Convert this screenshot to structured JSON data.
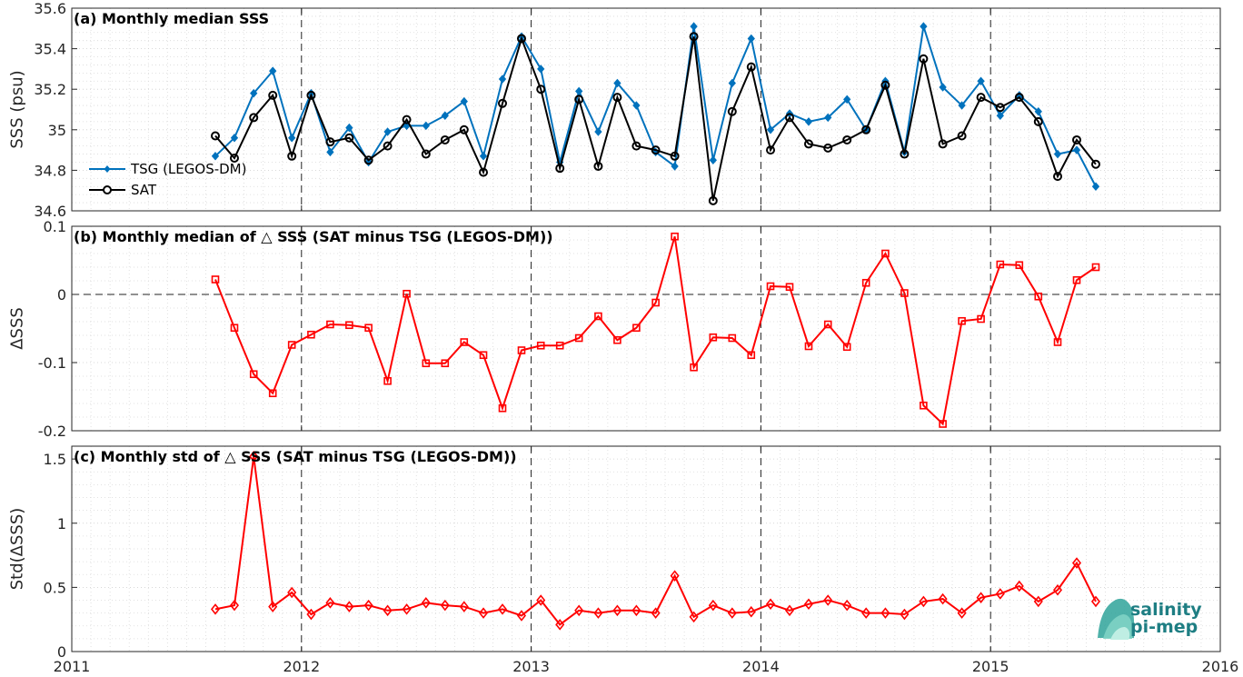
{
  "chart_data": [
    {
      "type": "line",
      "panel": "a",
      "title": "(a) Monthly median SSS",
      "ylabel": "SSS (psu)",
      "xlim": [
        2011,
        2016
      ],
      "ylim": [
        34.6,
        35.6
      ],
      "yticks": [
        "34.6",
        "34.8",
        "35",
        "35.2",
        "35.4",
        "35.6"
      ],
      "grid": true,
      "legend_placement": "left",
      "x": [
        2011.625,
        2011.708,
        2011.792,
        2011.875,
        2011.958,
        2012.042,
        2012.125,
        2012.208,
        2012.292,
        2012.375,
        2012.458,
        2012.542,
        2012.625,
        2012.708,
        2012.792,
        2012.875,
        2012.958,
        2013.042,
        2013.125,
        2013.208,
        2013.292,
        2013.375,
        2013.458,
        2013.542,
        2013.625,
        2013.708,
        2013.792,
        2013.875,
        2013.958,
        2014.042,
        2014.125,
        2014.208,
        2014.292,
        2014.375,
        2014.458,
        2014.542,
        2014.625,
        2014.708,
        2014.792,
        2014.875,
        2014.958,
        2015.042,
        2015.125,
        2015.208,
        2015.292,
        2015.375,
        2015.458
      ],
      "series": [
        {
          "name": "TSG (LEGOS-DM)",
          "color": "#0072bd",
          "marker": "diamond",
          "values": [
            34.87,
            34.96,
            35.18,
            35.29,
            34.96,
            35.18,
            34.89,
            35.01,
            34.84,
            34.99,
            35.02,
            35.02,
            35.07,
            35.14,
            34.87,
            35.25,
            35.46,
            35.3,
            34.84,
            35.19,
            34.99,
            35.23,
            35.12,
            34.89,
            34.82,
            35.51,
            34.85,
            35.23,
            35.45,
            35.0,
            35.08,
            35.04,
            35.06,
            35.15,
            35.0,
            35.24,
            34.89,
            35.51,
            35.21,
            35.12,
            35.24,
            35.07,
            35.17,
            35.09,
            34.88,
            34.9,
            34.72
          ]
        },
        {
          "name": "SAT",
          "color": "#000000",
          "marker": "circle",
          "values": [
            34.97,
            34.86,
            35.06,
            35.17,
            34.87,
            35.17,
            34.94,
            34.96,
            34.85,
            34.92,
            35.05,
            34.88,
            34.95,
            35.0,
            34.79,
            35.13,
            35.45,
            35.2,
            34.81,
            35.15,
            34.82,
            35.16,
            34.92,
            34.9,
            34.87,
            35.46,
            34.65,
            35.09,
            35.31,
            34.9,
            35.06,
            34.93,
            34.91,
            34.95,
            35.0,
            35.22,
            34.88,
            35.35,
            34.93,
            34.97,
            35.16,
            35.11,
            35.16,
            35.04,
            34.77,
            34.95,
            34.83
          ]
        }
      ]
    },
    {
      "type": "line",
      "panel": "b",
      "title": "(b) Monthly median of △ SSS (SAT minus TSG (LEGOS-DM))",
      "ylabel": "ΔSSS",
      "xlim": [
        2011,
        2016
      ],
      "ylim": [
        -0.2,
        0.1
      ],
      "yticks": [
        "-0.2",
        "-0.1",
        "0",
        "0.1"
      ],
      "grid": true,
      "zero_line": true,
      "x": [
        2011.625,
        2011.708,
        2011.792,
        2011.875,
        2011.958,
        2012.042,
        2012.125,
        2012.208,
        2012.292,
        2012.375,
        2012.458,
        2012.542,
        2012.625,
        2012.708,
        2012.792,
        2012.875,
        2012.958,
        2013.042,
        2013.125,
        2013.208,
        2013.292,
        2013.375,
        2013.458,
        2013.542,
        2013.625,
        2013.708,
        2013.792,
        2013.875,
        2013.958,
        2014.042,
        2014.125,
        2014.208,
        2014.292,
        2014.375,
        2014.458,
        2014.542,
        2014.625,
        2014.708,
        2014.792,
        2014.875,
        2014.958,
        2015.042,
        2015.125,
        2015.208,
        2015.292,
        2015.375,
        2015.458
      ],
      "series": [
        {
          "name": "",
          "color": "#ff0000",
          "marker": "square",
          "values": [
            0.022,
            -0.049,
            -0.117,
            -0.145,
            -0.074,
            -0.059,
            -0.044,
            -0.045,
            -0.049,
            -0.127,
            0.001,
            -0.101,
            -0.101,
            -0.07,
            -0.089,
            -0.167,
            -0.082,
            -0.075,
            -0.075,
            -0.064,
            -0.032,
            -0.067,
            -0.049,
            -0.012,
            0.085,
            -0.107,
            -0.063,
            -0.064,
            -0.089,
            0.012,
            0.011,
            -0.076,
            -0.044,
            -0.077,
            0.017,
            0.06,
            0.002,
            -0.163,
            -0.19,
            -0.039,
            -0.036,
            0.044,
            0.043,
            -0.003,
            -0.07,
            0.021,
            0.04
          ]
        }
      ]
    },
    {
      "type": "line",
      "panel": "c",
      "title": "(c) Monthly std of △ SSS (SAT minus TSG (LEGOS-DM))",
      "ylabel": "Std(ΔSSS)",
      "xlim": [
        2011,
        2016
      ],
      "ylim": [
        0,
        1.6
      ],
      "yticks": [
        "0",
        "0.5",
        "1",
        "1.5"
      ],
      "xticks": [
        "2011",
        "2012",
        "2013",
        "2014",
        "2015",
        "2016"
      ],
      "grid": true,
      "x": [
        2011.625,
        2011.708,
        2011.792,
        2011.875,
        2011.958,
        2012.042,
        2012.125,
        2012.208,
        2012.292,
        2012.375,
        2012.458,
        2012.542,
        2012.625,
        2012.708,
        2012.792,
        2012.875,
        2012.958,
        2013.042,
        2013.125,
        2013.208,
        2013.292,
        2013.375,
        2013.458,
        2013.542,
        2013.625,
        2013.708,
        2013.792,
        2013.875,
        2013.958,
        2014.042,
        2014.125,
        2014.208,
        2014.292,
        2014.375,
        2014.458,
        2014.542,
        2014.625,
        2014.708,
        2014.792,
        2014.875,
        2014.958,
        2015.042,
        2015.125,
        2015.208,
        2015.292,
        2015.375,
        2015.458
      ],
      "series": [
        {
          "name": "",
          "color": "#ff0000",
          "marker": "diamond",
          "values": [
            0.33,
            0.36,
            1.52,
            0.35,
            0.46,
            0.29,
            0.38,
            0.35,
            0.36,
            0.32,
            0.33,
            0.38,
            0.36,
            0.35,
            0.3,
            0.33,
            0.28,
            0.4,
            0.21,
            0.32,
            0.3,
            0.32,
            0.32,
            0.3,
            0.59,
            0.27,
            0.36,
            0.3,
            0.31,
            0.37,
            0.32,
            0.37,
            0.4,
            0.36,
            0.3,
            0.3,
            0.29,
            0.39,
            0.41,
            0.3,
            0.42,
            0.45,
            0.51,
            0.39,
            0.48,
            0.69,
            0.39
          ]
        }
      ]
    }
  ],
  "logo": {
    "line1": "salinity",
    "line2": "pi-mep",
    "color": "#1e7e83"
  }
}
